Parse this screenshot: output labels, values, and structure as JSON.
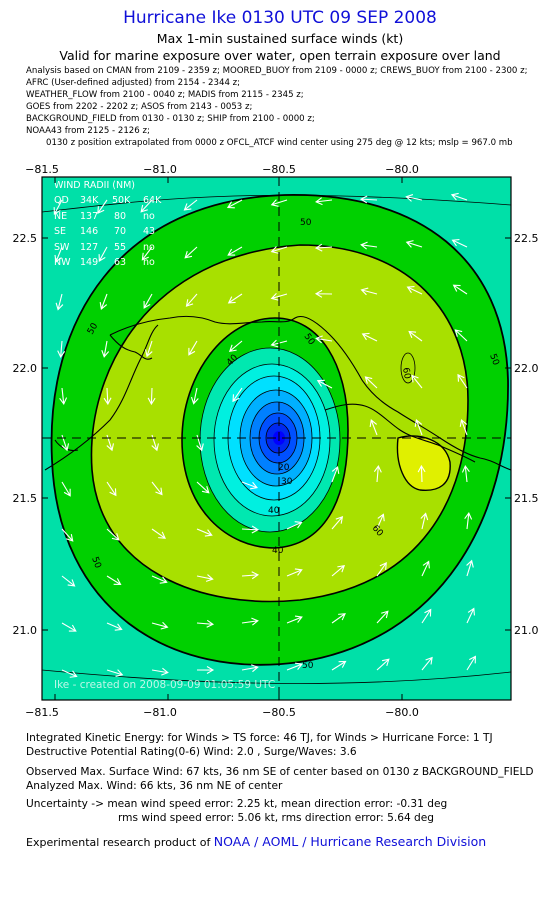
{
  "header": {
    "title": "Hurricane Ike 0130 UTC 09 SEP 2008",
    "subtitle": "Max 1-min sustained surface winds (kt)",
    "valid": "Valid for marine exposure over water, open terrain exposure over land"
  },
  "sources": [
    "Analysis based on  CMAN from 2109 - 2359 z;  MOORED_BUOY from 2109 - 0000 z;  CREWS_BUOY from 2100 - 2300 z;",
    "AFRC (User-defined adjusted) from 2154 - 2344 z;",
    "WEATHER_FLOW from 2100 - 0040 z;  MADIS from 2115 - 2345 z;",
    "GOES from 2202 - 2202 z;  ASOS from 2143 - 0053 z;",
    "BACKGROUND_FIELD from 0130 - 0130 z;  SHIP from 2100 - 0000 z;",
    "NOAA43 from 2125 - 2126 z;"
  ],
  "position_note": "0130 z position extrapolated from 0000 z OFCL_ATCF wind center using 275 deg @ 12 kts; mslp = 967.0 mb",
  "map": {
    "lon_ticks": [
      "−81.5",
      "−81.0",
      "−80.5",
      "−80.0"
    ],
    "lat_ticks": [
      "22.5",
      "22.0",
      "21.5",
      "21.0"
    ],
    "wind_radii": {
      "title": "WIND RADII (NM)",
      "header": [
        "QD",
        "34K",
        "50K",
        "64K"
      ],
      "rows": [
        [
          "NE",
          "137",
          "80",
          "no"
        ],
        [
          "SE",
          "146",
          "70",
          "43"
        ],
        [
          "SW",
          "127",
          "55",
          "no"
        ],
        [
          "NW",
          "149",
          "63",
          "no"
        ]
      ]
    },
    "contour_labels": [
      "50",
      "50",
      "50",
      "50",
      "50",
      "50",
      "60",
      "60",
      "40",
      "40",
      "40",
      "30",
      "20"
    ],
    "watermark": "Ike - created on 2008-09-09 01:05:59 UTC",
    "colors": {
      "background": "#00e0a8",
      "ring_band": "#00d000",
      "inner_band": "#a8e000",
      "peak_band": "#e0f000",
      "eye": "#0000ff"
    }
  },
  "footer": {
    "ike": "Integrated Kinetic Energy:  for Winds > TS force: 46 TJ,  for Winds > Hurricane Force: 1 TJ",
    "dpr": "Destructive Potential Rating(0-6)   Wind: 2.0 , Surge/Waves: 3.6",
    "observed": "Observed Max. Surface Wind: 67 kts, 36 nm SE of center based on 0130 z BACKGROUND_FIELD",
    "analyzed": "Analyzed Max. Wind: 66 kts, 36 nm NE of center",
    "uncertainty": "Uncertainty -> mean wind speed error: 2.25 kt,   mean direction error:  -0.31 deg",
    "rms": "rms wind speed error: 5.06 kt,   rms direction error: 5.64 deg",
    "credit_prefix": "Experimental research product of",
    "credit_org": "NOAA / AOML / Hurricane Research Division"
  }
}
